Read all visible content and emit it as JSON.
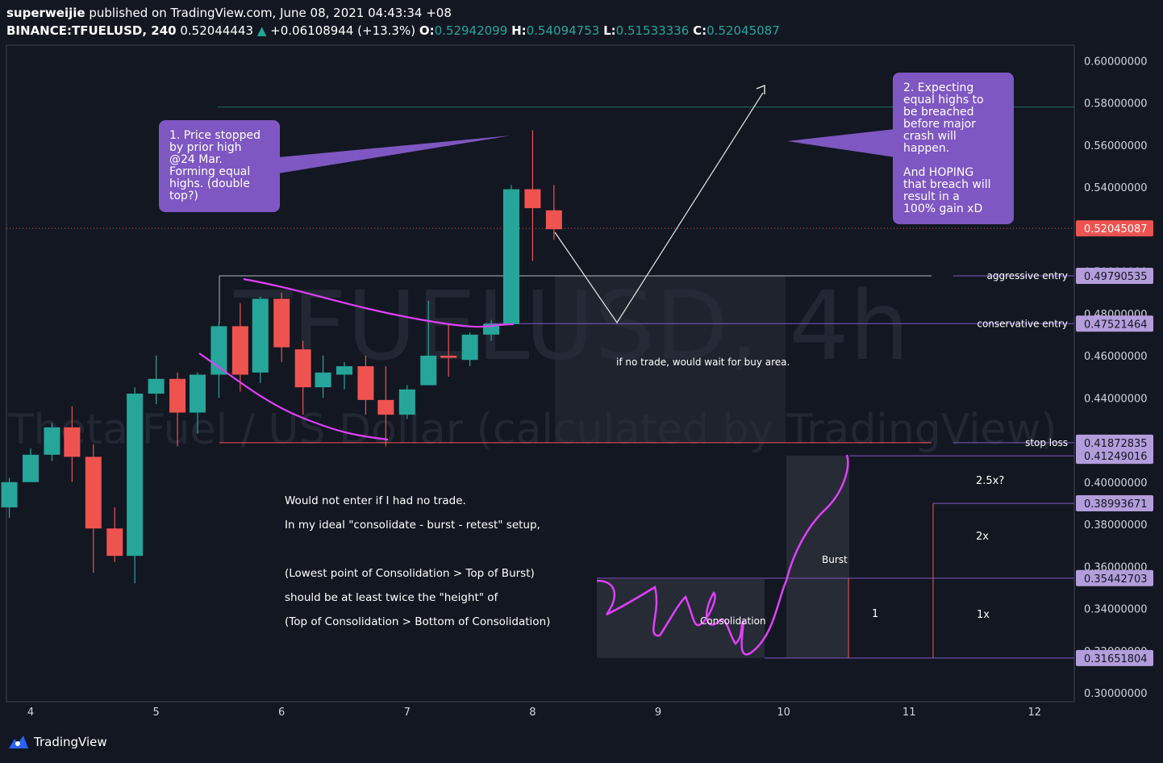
{
  "header": {
    "author": "superweijie",
    "published_text": "published on TradingView.com, June 08, 2021 04:43:34 +08",
    "symbol": "BINANCE:TFUELUSD",
    "interval": "240",
    "last": "0.52044443",
    "change": "+0.06108944 (+13.3%)",
    "open_label": "O:",
    "open": "0.52942099",
    "high_label": "H:",
    "high": "0.54094753",
    "low_label": "L:",
    "low": "0.51533336",
    "close_label": "C:",
    "close": "0.52045087"
  },
  "watermark": {
    "ticker": "TFUELUSD, 4h",
    "name": "Theta Fuel / US Dollar (calculated by TradingView)"
  },
  "footer": {
    "brand": "TradingView"
  },
  "colors": {
    "up": "#26a69a",
    "down": "#ef5350",
    "background": "#131722",
    "callout": "#7e57c2",
    "curve": "#e040fb"
  },
  "chart_data": {
    "type": "candlestick",
    "ylim": [
      0.295,
      0.61
    ],
    "xlim": [
      3.85,
      12.3
    ],
    "x_ticks": [
      4,
      5,
      6,
      7,
      8,
      9,
      10,
      11,
      12
    ],
    "y_ticks": [
      "0.30000000",
      "0.32000000",
      "0.34000000",
      "0.36000000",
      "0.38000000",
      "0.40000000",
      "0.42000000",
      "0.44000000",
      "0.46000000",
      "0.48000000",
      "0.50000000",
      "0.52000000",
      "0.54000000",
      "0.56000000",
      "0.58000000",
      "0.60000000"
    ],
    "candles": [
      {
        "x": 3.83,
        "o": 0.388,
        "h": 0.402,
        "l": 0.383,
        "c": 0.4
      },
      {
        "x": 4.0,
        "o": 0.4,
        "h": 0.416,
        "l": 0.4,
        "c": 0.413
      },
      {
        "x": 4.17,
        "o": 0.413,
        "h": 0.428,
        "l": 0.41,
        "c": 0.426
      },
      {
        "x": 4.33,
        "o": 0.426,
        "h": 0.436,
        "l": 0.4,
        "c": 0.412
      },
      {
        "x": 4.5,
        "o": 0.412,
        "h": 0.418,
        "l": 0.357,
        "c": 0.378
      },
      {
        "x": 4.67,
        "o": 0.378,
        "h": 0.388,
        "l": 0.362,
        "c": 0.365
      },
      {
        "x": 4.83,
        "o": 0.365,
        "h": 0.445,
        "l": 0.352,
        "c": 0.442
      },
      {
        "x": 5.0,
        "o": 0.442,
        "h": 0.46,
        "l": 0.437,
        "c": 0.449
      },
      {
        "x": 5.17,
        "o": 0.449,
        "h": 0.452,
        "l": 0.417,
        "c": 0.433
      },
      {
        "x": 5.33,
        "o": 0.433,
        "h": 0.452,
        "l": 0.423,
        "c": 0.451
      },
      {
        "x": 5.5,
        "o": 0.451,
        "h": 0.476,
        "l": 0.44,
        "c": 0.474
      },
      {
        "x": 5.67,
        "o": 0.474,
        "h": 0.485,
        "l": 0.443,
        "c": 0.451
      },
      {
        "x": 5.83,
        "o": 0.452,
        "h": 0.488,
        "l": 0.447,
        "c": 0.487
      },
      {
        "x": 6.0,
        "o": 0.487,
        "h": 0.49,
        "l": 0.457,
        "c": 0.464
      },
      {
        "x": 6.17,
        "o": 0.463,
        "h": 0.467,
        "l": 0.432,
        "c": 0.445
      },
      {
        "x": 6.33,
        "o": 0.445,
        "h": 0.46,
        "l": 0.44,
        "c": 0.452
      },
      {
        "x": 6.5,
        "o": 0.451,
        "h": 0.457,
        "l": 0.444,
        "c": 0.455
      },
      {
        "x": 6.67,
        "o": 0.455,
        "h": 0.46,
        "l": 0.432,
        "c": 0.439
      },
      {
        "x": 6.83,
        "o": 0.439,
        "h": 0.455,
        "l": 0.417,
        "c": 0.432
      },
      {
        "x": 7.0,
        "o": 0.432,
        "h": 0.446,
        "l": 0.43,
        "c": 0.444
      },
      {
        "x": 7.17,
        "o": 0.446,
        "h": 0.486,
        "l": 0.446,
        "c": 0.46
      },
      {
        "x": 7.33,
        "o": 0.46,
        "h": 0.475,
        "l": 0.45,
        "c": 0.459
      },
      {
        "x": 7.5,
        "o": 0.458,
        "h": 0.471,
        "l": 0.455,
        "c": 0.47
      },
      {
        "x": 7.67,
        "o": 0.47,
        "h": 0.477,
        "l": 0.467,
        "c": 0.475
      },
      {
        "x": 7.83,
        "o": 0.475,
        "h": 0.541,
        "l": 0.475,
        "c": 0.539
      },
      {
        "x": 8.0,
        "o": 0.539,
        "h": 0.567,
        "l": 0.505,
        "c": 0.53
      },
      {
        "x": 8.17,
        "o": 0.529,
        "h": 0.541,
        "l": 0.515,
        "c": 0.52
      }
    ],
    "price_labels": [
      {
        "value": "0.52045087",
        "type": "current",
        "y": 0.52045087
      },
      {
        "value": "0.49790535",
        "type": "level",
        "y": 0.49790535
      },
      {
        "value": "0.47521464",
        "type": "level",
        "y": 0.47521464
      },
      {
        "value": "0.41872835",
        "type": "level",
        "y": 0.41872835
      },
      {
        "value": "0.41249016",
        "type": "level",
        "y": 0.41249016
      },
      {
        "value": "0.38993671",
        "type": "level",
        "y": 0.38993671
      },
      {
        "value": "0.35442703",
        "type": "level",
        "y": 0.35442703
      },
      {
        "value": "0.31651804",
        "type": "level",
        "y": 0.31651804
      }
    ],
    "level_labels": [
      {
        "text": "aggressive entry",
        "y": 0.49790535
      },
      {
        "text": "conservative entry",
        "y": 0.47521464
      },
      {
        "text": "stop loss",
        "y": 0.41872835
      }
    ],
    "callouts": [
      {
        "lines": [
          "1. Price stopped",
          "by prior high",
          "@24 Mar.",
          "Forming equal",
          "highs. (double",
          "top?)"
        ]
      },
      {
        "lines": [
          "2. Expecting",
          "equal highs to",
          "be breached",
          "before major",
          "crash will",
          "happen.",
          "",
          "And HOPING",
          "that breach will",
          "result in a",
          "100% gain xD"
        ]
      }
    ],
    "annotations": {
      "wait_text": "if no trade, would wait for buy area.",
      "rule_lines": [
        "Would not enter if I had no trade.",
        "In my ideal \"consolidate - burst - retest\" setup,",
        "",
        "(Lowest point of Consolidation > Top of Burst)",
        "should be at least twice the \"height\" of",
        "(Top of Consolidation > Bottom of Consolidation)"
      ],
      "consolidation": "Consolidation",
      "burst": "Burst",
      "ratio_one": "1",
      "ratio_1x": "1x",
      "ratio_2x": "2x",
      "ratio_25x": "2.5x?"
    }
  }
}
